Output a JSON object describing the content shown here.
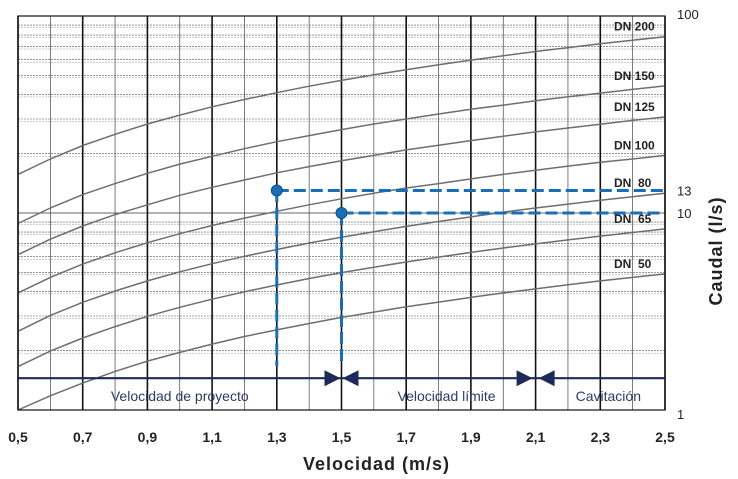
{
  "chart_data": {
    "type": "line",
    "title": "",
    "xlabel": "Velocidad (m/s)",
    "ylabel": "Caudal (l/s)",
    "xlim": [
      0.5,
      2.5
    ],
    "ylim": [
      1,
      100
    ],
    "y_scale": "log",
    "grid": true,
    "x_ticks": [
      "0,5",
      "0,7",
      "0,9",
      "1,1",
      "1,3",
      "1,5",
      "1,7",
      "1,9",
      "2,1",
      "2,3",
      "2,5"
    ],
    "x_tick_values": [
      0.5,
      0.7,
      0.9,
      1.1,
      1.3,
      1.5,
      1.7,
      1.9,
      2.1,
      2.3,
      2.5
    ],
    "y_ticks": [
      {
        "label": "1",
        "value": 1
      },
      {
        "label": "10",
        "value": 10
      },
      {
        "label": "13",
        "value": 13
      },
      {
        "label": "100",
        "value": 100
      }
    ],
    "x": [
      0.5,
      0.6,
      0.7,
      0.8,
      0.9,
      1.0,
      1.1,
      1.2,
      1.3,
      1.4,
      1.5,
      1.6,
      1.7,
      1.8,
      1.9,
      2.0,
      2.1,
      2.2,
      2.3,
      2.4,
      2.5
    ],
    "series": [
      {
        "name": "DN 200",
        "values": [
          15.7,
          18.8,
          22.0,
          25.1,
          28.3,
          31.4,
          34.6,
          37.7,
          40.8,
          44.0,
          47.1,
          50.3,
          53.4,
          56.5,
          59.7,
          62.8,
          66.0,
          69.1,
          72.3,
          75.4,
          78.5
        ]
      },
      {
        "name": "DN 150",
        "values": [
          8.84,
          10.6,
          12.4,
          14.1,
          15.9,
          17.7,
          19.4,
          21.2,
          23.0,
          24.7,
          26.5,
          28.3,
          30.0,
          31.8,
          33.6,
          35.3,
          37.1,
          38.9,
          40.6,
          42.4,
          44.2
        ]
      },
      {
        "name": "DN 125",
        "values": [
          6.14,
          7.36,
          8.59,
          9.82,
          11.0,
          12.3,
          13.5,
          14.7,
          16.0,
          17.2,
          18.4,
          19.6,
          20.9,
          22.1,
          23.3,
          24.5,
          25.8,
          27.0,
          28.2,
          29.5,
          30.7
        ]
      },
      {
        "name": "DN 100",
        "values": [
          3.93,
          4.71,
          5.5,
          6.28,
          7.07,
          7.85,
          8.64,
          9.42,
          10.2,
          11.0,
          11.8,
          12.6,
          13.4,
          14.1,
          14.9,
          15.7,
          16.5,
          17.3,
          18.1,
          18.8,
          19.6
        ]
      },
      {
        "name": "DN  80",
        "values": [
          2.51,
          3.02,
          3.52,
          4.02,
          4.52,
          5.03,
          5.53,
          6.03,
          6.53,
          7.04,
          7.54,
          8.04,
          8.55,
          9.05,
          9.55,
          10.1,
          10.6,
          11.1,
          11.6,
          12.1,
          12.6
        ]
      },
      {
        "name": "DN  65",
        "values": [
          1.66,
          1.99,
          2.32,
          2.65,
          2.99,
          3.32,
          3.65,
          3.98,
          4.31,
          4.65,
          4.98,
          5.31,
          5.64,
          5.97,
          6.31,
          6.64,
          6.97,
          7.3,
          7.63,
          7.96,
          8.3
        ]
      },
      {
        "name": "DN  50",
        "values": [
          0.98,
          1.18,
          1.37,
          1.57,
          1.77,
          1.96,
          2.16,
          2.36,
          2.55,
          2.75,
          2.95,
          3.14,
          3.34,
          3.53,
          3.73,
          3.93,
          4.12,
          4.32,
          4.52,
          4.71,
          4.91
        ]
      }
    ],
    "annotations": {
      "points": [
        {
          "x": 1.3,
          "y": 13
        },
        {
          "x": 1.5,
          "y": 10
        }
      ],
      "guide_color": "#1a6fb4",
      "zone_line_y": 1.45,
      "zone_line_color": "#1f2a5c",
      "zones": [
        {
          "label": "Velocidad de proyecto",
          "from": 0.5,
          "to": 1.5
        },
        {
          "label": "Velocidad límite",
          "from": 1.5,
          "to": 2.1
        },
        {
          "label": "Cavitación",
          "from": 2.1,
          "to": 2.5
        }
      ]
    }
  }
}
